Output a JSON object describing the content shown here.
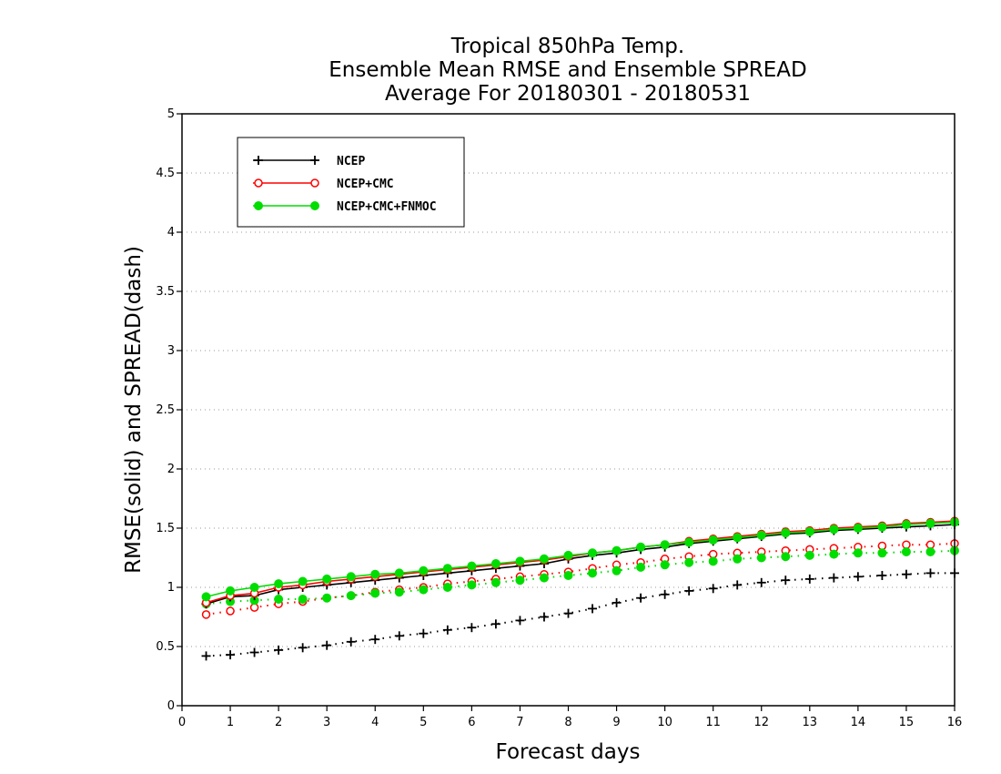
{
  "chart_data": {
    "type": "line",
    "title_lines": [
      "Tropical 850hPa Temp.",
      "Ensemble Mean RMSE and Ensemble SPREAD",
      "Average For 20180301 - 20180531"
    ],
    "xlabel": "Forecast days",
    "ylabel": "RMSE(solid) and SPREAD(dash)",
    "xlim": [
      0,
      16
    ],
    "ylim": [
      0,
      5
    ],
    "x_ticks": [
      "0",
      "1",
      "2",
      "3",
      "4",
      "5",
      "6",
      "7",
      "8",
      "9",
      "10",
      "11",
      "12",
      "13",
      "14",
      "15",
      "16"
    ],
    "y_ticks": [
      "0",
      "0.5",
      "1",
      "1.5",
      "2",
      "2.5",
      "3",
      "3.5",
      "4",
      "4.5",
      "5"
    ],
    "grid": "horizontal dotted",
    "legend_position": "top-left",
    "x": [
      0.5,
      1,
      1.5,
      2,
      2.5,
      3,
      3.5,
      4,
      4.5,
      5,
      5.5,
      6,
      6.5,
      7,
      7.5,
      8,
      8.5,
      9,
      9.5,
      10,
      10.5,
      11,
      11.5,
      12,
      12.5,
      13,
      13.5,
      14,
      14.5,
      15,
      15.5,
      16
    ],
    "series": [
      {
        "name": "NCEP",
        "color": "#000000",
        "marker": "plus",
        "rmse": [
          0.86,
          0.92,
          0.93,
          0.98,
          1.0,
          1.02,
          1.04,
          1.06,
          1.08,
          1.1,
          1.12,
          1.14,
          1.16,
          1.18,
          1.2,
          1.24,
          1.27,
          1.29,
          1.32,
          1.34,
          1.37,
          1.39,
          1.41,
          1.43,
          1.45,
          1.46,
          1.48,
          1.49,
          1.5,
          1.51,
          1.52,
          1.53
        ],
        "spread": [
          0.42,
          0.43,
          0.45,
          0.47,
          0.49,
          0.51,
          0.54,
          0.56,
          0.59,
          0.61,
          0.64,
          0.66,
          0.69,
          0.72,
          0.75,
          0.78,
          0.82,
          0.87,
          0.91,
          0.94,
          0.97,
          0.99,
          1.02,
          1.04,
          1.06,
          1.07,
          1.08,
          1.09,
          1.1,
          1.11,
          1.12,
          1.12
        ]
      },
      {
        "name": "NCEP+CMC",
        "color": "#ff0000",
        "marker": "open-circle",
        "rmse": [
          0.87,
          0.93,
          0.95,
          1.0,
          1.02,
          1.05,
          1.07,
          1.09,
          1.11,
          1.13,
          1.15,
          1.17,
          1.19,
          1.21,
          1.23,
          1.26,
          1.29,
          1.31,
          1.34,
          1.36,
          1.39,
          1.41,
          1.43,
          1.45,
          1.47,
          1.48,
          1.5,
          1.51,
          1.52,
          1.54,
          1.55,
          1.56
        ],
        "spread": [
          0.77,
          0.8,
          0.83,
          0.86,
          0.88,
          0.91,
          0.93,
          0.96,
          0.98,
          1.0,
          1.03,
          1.05,
          1.07,
          1.09,
          1.11,
          1.13,
          1.16,
          1.19,
          1.21,
          1.24,
          1.26,
          1.28,
          1.29,
          1.3,
          1.31,
          1.32,
          1.33,
          1.34,
          1.35,
          1.36,
          1.36,
          1.37
        ]
      },
      {
        "name": "NCEP+CMC+FNMOC",
        "color": "#00dd00",
        "marker": "filled-circle",
        "rmse": [
          0.92,
          0.97,
          1.0,
          1.03,
          1.05,
          1.07,
          1.09,
          1.11,
          1.12,
          1.14,
          1.16,
          1.18,
          1.2,
          1.22,
          1.24,
          1.27,
          1.29,
          1.31,
          1.34,
          1.36,
          1.38,
          1.4,
          1.42,
          1.44,
          1.46,
          1.47,
          1.49,
          1.5,
          1.51,
          1.53,
          1.54,
          1.55
        ],
        "spread": [
          0.86,
          0.88,
          0.89,
          0.9,
          0.9,
          0.91,
          0.93,
          0.95,
          0.96,
          0.98,
          1.0,
          1.02,
          1.04,
          1.06,
          1.08,
          1.1,
          1.12,
          1.14,
          1.17,
          1.19,
          1.21,
          1.22,
          1.24,
          1.25,
          1.26,
          1.27,
          1.28,
          1.29,
          1.29,
          1.3,
          1.3,
          1.31
        ]
      }
    ]
  }
}
